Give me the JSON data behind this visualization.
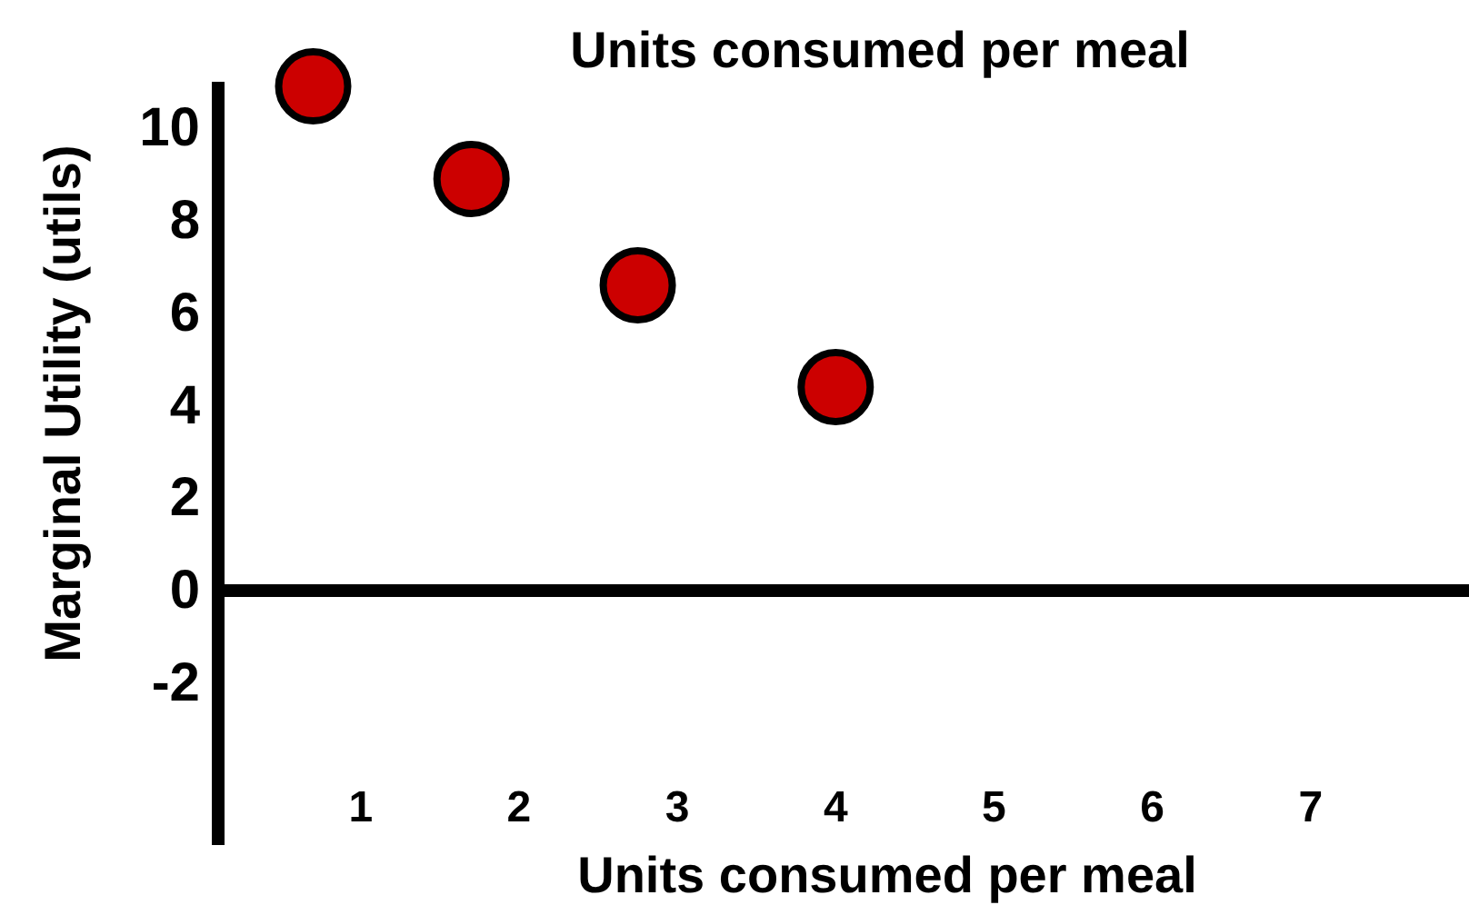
{
  "chart_data": {
    "type": "scatter",
    "title": "Units consumed per meal",
    "xlabel": "Units consumed per meal",
    "ylabel": "Marginal Utility (utils)",
    "x": [
      0.7,
      1.7,
      2.75,
      4
    ],
    "series": [
      {
        "color": "#cc0000",
        "values": [
          10.9,
          8.9,
          6.6,
          4.4
        ]
      }
    ],
    "marker": "circle",
    "xlim": [
      0.1,
      8
    ],
    "xticks": [
      1,
      2,
      3,
      4,
      5,
      6,
      7
    ],
    "ylim": [
      -5.5,
      11
    ],
    "yticks": [
      -2,
      0,
      2,
      4,
      6,
      8,
      10
    ]
  }
}
